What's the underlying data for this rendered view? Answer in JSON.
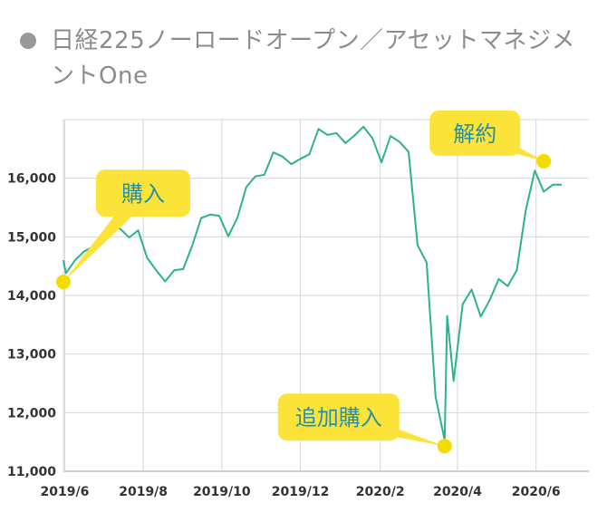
{
  "header": {
    "title": "日経225ノーロードオープン／アセットマネジメントOne"
  },
  "colors": {
    "line": "#2bb28e",
    "marker": "#f5dc00",
    "callout": "#fbe33a",
    "grid": "#d6d6d6",
    "title": "#8c8c8c"
  },
  "chart_data": {
    "type": "line",
    "title": "日経225ノーロードオープン／アセットマネジメントOne",
    "xlabel": "",
    "ylabel": "",
    "x_ticks": [
      "2019/6",
      "2019/8",
      "2019/10",
      "2019/12",
      "2020/2",
      "2020/4",
      "2020/6"
    ],
    "y_ticks": [
      "11,000",
      "12,000",
      "13,000",
      "14,000",
      "15,000",
      "16,000"
    ],
    "ylim": [
      11000,
      17000
    ],
    "xlim": [
      "2019-05-31",
      "2020-07-12"
    ],
    "grid": true,
    "series": [
      {
        "x": [
          "2019-05-31",
          "2019-06-02",
          "2019-06-09",
          "2019-06-16",
          "2019-06-23",
          "2019-06-30",
          "2019-07-07",
          "2019-07-14",
          "2019-07-21",
          "2019-07-28",
          "2019-08-04",
          "2019-08-11",
          "2019-08-18",
          "2019-08-25",
          "2019-09-01",
          "2019-09-08",
          "2019-09-15",
          "2019-09-22",
          "2019-09-29",
          "2019-10-06",
          "2019-10-13",
          "2019-10-20",
          "2019-10-27",
          "2019-11-03",
          "2019-11-10",
          "2019-11-17",
          "2019-11-24",
          "2019-12-01",
          "2019-12-08",
          "2019-12-15",
          "2019-12-22",
          "2019-12-29",
          "2020-01-05",
          "2020-01-12",
          "2020-01-19",
          "2020-01-26",
          "2020-02-02",
          "2020-02-09",
          "2020-02-16",
          "2020-02-23",
          "2020-03-01",
          "2020-03-08",
          "2020-03-15",
          "2020-03-22",
          "2020-03-24",
          "2020-03-29",
          "2020-04-05",
          "2020-04-12",
          "2020-04-19",
          "2020-04-26",
          "2020-05-03",
          "2020-05-10",
          "2020-05-17",
          "2020-05-24",
          "2020-05-31",
          "2020-06-07",
          "2020-06-14",
          "2020-06-21"
        ],
        "y": [
          14600,
          14380,
          14600,
          14750,
          14830,
          14880,
          15180,
          15140,
          14990,
          15110,
          14640,
          14430,
          14240,
          14430,
          14450,
          14850,
          15320,
          15380,
          15360,
          15010,
          15320,
          15850,
          16030,
          16060,
          16440,
          16370,
          16240,
          16330,
          16410,
          16840,
          16740,
          16770,
          16600,
          16730,
          16880,
          16680,
          16270,
          16720,
          16620,
          16450,
          14860,
          14560,
          12270,
          11530,
          13650,
          12540,
          13850,
          14100,
          13640,
          13920,
          14280,
          14160,
          14430,
          15450,
          16130,
          15770,
          15890,
          15890
        ]
      }
    ],
    "annotations": [
      {
        "label": "購入",
        "x": "2019-05-31",
        "y": 14230
      },
      {
        "label": "追加購入",
        "x": "2020-03-22",
        "y": 11430
      },
      {
        "label": "解約",
        "x": "2020-06-07",
        "y": 16290
      }
    ]
  }
}
